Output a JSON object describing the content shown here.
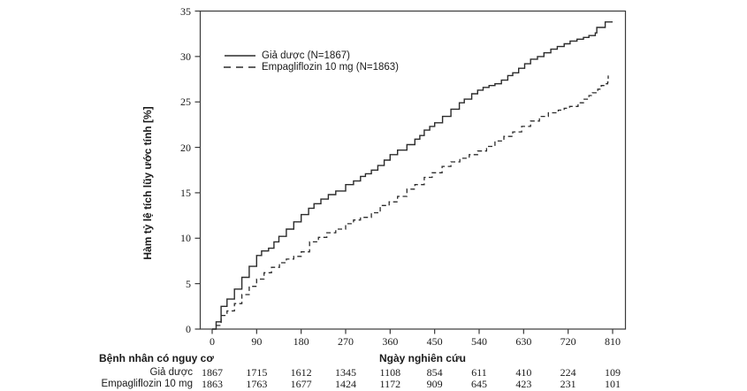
{
  "colors": {
    "line": "#2b2b2b",
    "frame": "#3a3a3a",
    "text": "#1a1a1a",
    "background": "#ffffff"
  },
  "chart_data": {
    "type": "line",
    "subtype": "kaplan-meier-cumulative-incidence",
    "title": "",
    "ylabel": "Hàm tỷ lệ tích lũy ước tính [%]",
    "xlabel": "Ngày nghiên cứu",
    "xlim": [
      0,
      810
    ],
    "ylim": [
      0,
      35
    ],
    "x_ticks": [
      0,
      90,
      180,
      270,
      360,
      450,
      540,
      630,
      720,
      810
    ],
    "y_ticks": [
      0,
      5,
      10,
      15,
      20,
      25,
      30,
      35
    ],
    "grid": false,
    "legend_position": "top-left-inside",
    "series": [
      {
        "name": "Giả dược (N=1867)",
        "style": "solid",
        "points": [
          [
            0,
            0
          ],
          [
            8,
            0.8
          ],
          [
            18,
            2.5
          ],
          [
            30,
            3.3
          ],
          [
            45,
            4.4
          ],
          [
            60,
            5.7
          ],
          [
            75,
            6.9
          ],
          [
            90,
            8.1
          ],
          [
            100,
            8.6
          ],
          [
            114,
            8.9
          ],
          [
            125,
            9.6
          ],
          [
            135,
            10.2
          ],
          [
            150,
            11.0
          ],
          [
            165,
            11.8
          ],
          [
            180,
            12.6
          ],
          [
            195,
            13.3
          ],
          [
            206,
            13.8
          ],
          [
            220,
            14.3
          ],
          [
            235,
            14.8
          ],
          [
            250,
            15.2
          ],
          [
            270,
            15.9
          ],
          [
            286,
            16.3
          ],
          [
            300,
            16.8
          ],
          [
            310,
            17.1
          ],
          [
            322,
            17.5
          ],
          [
            335,
            18.0
          ],
          [
            348,
            18.6
          ],
          [
            360,
            19.2
          ],
          [
            375,
            19.7
          ],
          [
            394,
            20.3
          ],
          [
            410,
            20.9
          ],
          [
            420,
            21.3
          ],
          [
            429,
            21.9
          ],
          [
            440,
            22.3
          ],
          [
            450,
            22.7
          ],
          [
            466,
            23.4
          ],
          [
            483,
            24.2
          ],
          [
            500,
            24.9
          ],
          [
            510,
            25.3
          ],
          [
            525,
            25.9
          ],
          [
            537,
            26.3
          ],
          [
            548,
            26.6
          ],
          [
            560,
            26.8
          ],
          [
            572,
            27.0
          ],
          [
            585,
            27.4
          ],
          [
            598,
            27.9
          ],
          [
            608,
            28.2
          ],
          [
            620,
            28.7
          ],
          [
            632,
            29.2
          ],
          [
            644,
            29.7
          ],
          [
            658,
            30.0
          ],
          [
            671,
            30.4
          ],
          [
            685,
            30.8
          ],
          [
            698,
            31.1
          ],
          [
            712,
            31.4
          ],
          [
            724,
            31.7
          ],
          [
            738,
            31.9
          ],
          [
            751,
            32.1
          ],
          [
            762,
            32.3
          ],
          [
            775,
            32.6
          ],
          [
            778,
            33.2
          ],
          [
            792,
            33.2
          ],
          [
            795,
            33.8
          ],
          [
            810,
            33.8
          ]
        ]
      },
      {
        "name": "Empagliflozin 10 mg (N=1863)",
        "style": "dashed",
        "points": [
          [
            0,
            0
          ],
          [
            8,
            0.4
          ],
          [
            18,
            1.5
          ],
          [
            30,
            2.0
          ],
          [
            45,
            2.8
          ],
          [
            60,
            3.8
          ],
          [
            75,
            4.7
          ],
          [
            90,
            5.5
          ],
          [
            105,
            6.2
          ],
          [
            120,
            6.8
          ],
          [
            136,
            7.3
          ],
          [
            150,
            7.7
          ],
          [
            165,
            8.0
          ],
          [
            180,
            8.5
          ],
          [
            197,
            9.6
          ],
          [
            215,
            10.1
          ],
          [
            232,
            10.6
          ],
          [
            250,
            11.0
          ],
          [
            270,
            11.6
          ],
          [
            286,
            12.0
          ],
          [
            300,
            12.3
          ],
          [
            322,
            12.8
          ],
          [
            340,
            13.6
          ],
          [
            358,
            14.0
          ],
          [
            375,
            14.6
          ],
          [
            394,
            15.4
          ],
          [
            410,
            15.9
          ],
          [
            429,
            16.7
          ],
          [
            445,
            17.2
          ],
          [
            465,
            17.9
          ],
          [
            483,
            18.4
          ],
          [
            501,
            18.8
          ],
          [
            520,
            19.2
          ],
          [
            537,
            19.6
          ],
          [
            555,
            20.1
          ],
          [
            572,
            20.7
          ],
          [
            590,
            21.2
          ],
          [
            608,
            21.7
          ],
          [
            626,
            22.3
          ],
          [
            644,
            22.9
          ],
          [
            662,
            23.4
          ],
          [
            680,
            23.8
          ],
          [
            700,
            24.1
          ],
          [
            712,
            24.3
          ],
          [
            723,
            24.5
          ],
          [
            740,
            24.9
          ],
          [
            751,
            25.3
          ],
          [
            762,
            25.7
          ],
          [
            769,
            26.0
          ],
          [
            780,
            26.4
          ],
          [
            787,
            26.8
          ],
          [
            794,
            27.0
          ],
          [
            800,
            27.2
          ],
          [
            801,
            27.9
          ]
        ]
      }
    ],
    "risk_table": {
      "title": "Bệnh nhân có nguy cơ",
      "rows": [
        {
          "label": "Giả dược",
          "values": [
            "1867",
            "1715",
            "1612",
            "1345",
            "1108",
            "854",
            "611",
            "410",
            "224",
            "109"
          ]
        },
        {
          "label": "Empagliflozin 10 mg",
          "values": [
            "1863",
            "1763",
            "1677",
            "1424",
            "1172",
            "909",
            "645",
            "423",
            "231",
            "101"
          ]
        }
      ]
    }
  }
}
